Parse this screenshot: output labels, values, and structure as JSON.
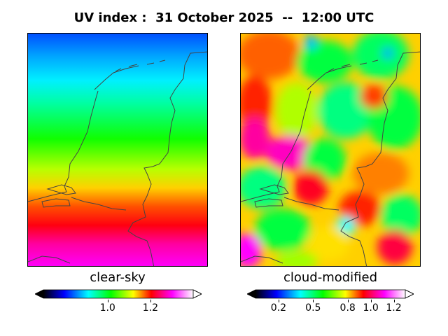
{
  "title": "UV index :  31 October 2025  --  12:00 UTC",
  "panels": [
    {
      "caption": "clear-sky",
      "colorbar_min": 0.7,
      "colorbar_max": 1.4,
      "ticks": [
        "1.0",
        "1.2"
      ],
      "tick_values": [
        1.0,
        1.2
      ],
      "extend": "both"
    },
    {
      "caption": "cloud-modified",
      "colorbar_min": 0.0,
      "colorbar_max": 1.3,
      "ticks": [
        "0.2",
        "0.5",
        "0.8",
        "1.0",
        "1.2"
      ],
      "tick_values": [
        0.2,
        0.5,
        0.8,
        1.0,
        1.2
      ],
      "extend": "both"
    }
  ],
  "colormap": [
    "#000000",
    "#0000ff",
    "#00ffff",
    "#00ff00",
    "#ffff00",
    "#ff0000",
    "#ff00ff",
    "#ffffff"
  ],
  "coastline_color": "#444444"
}
